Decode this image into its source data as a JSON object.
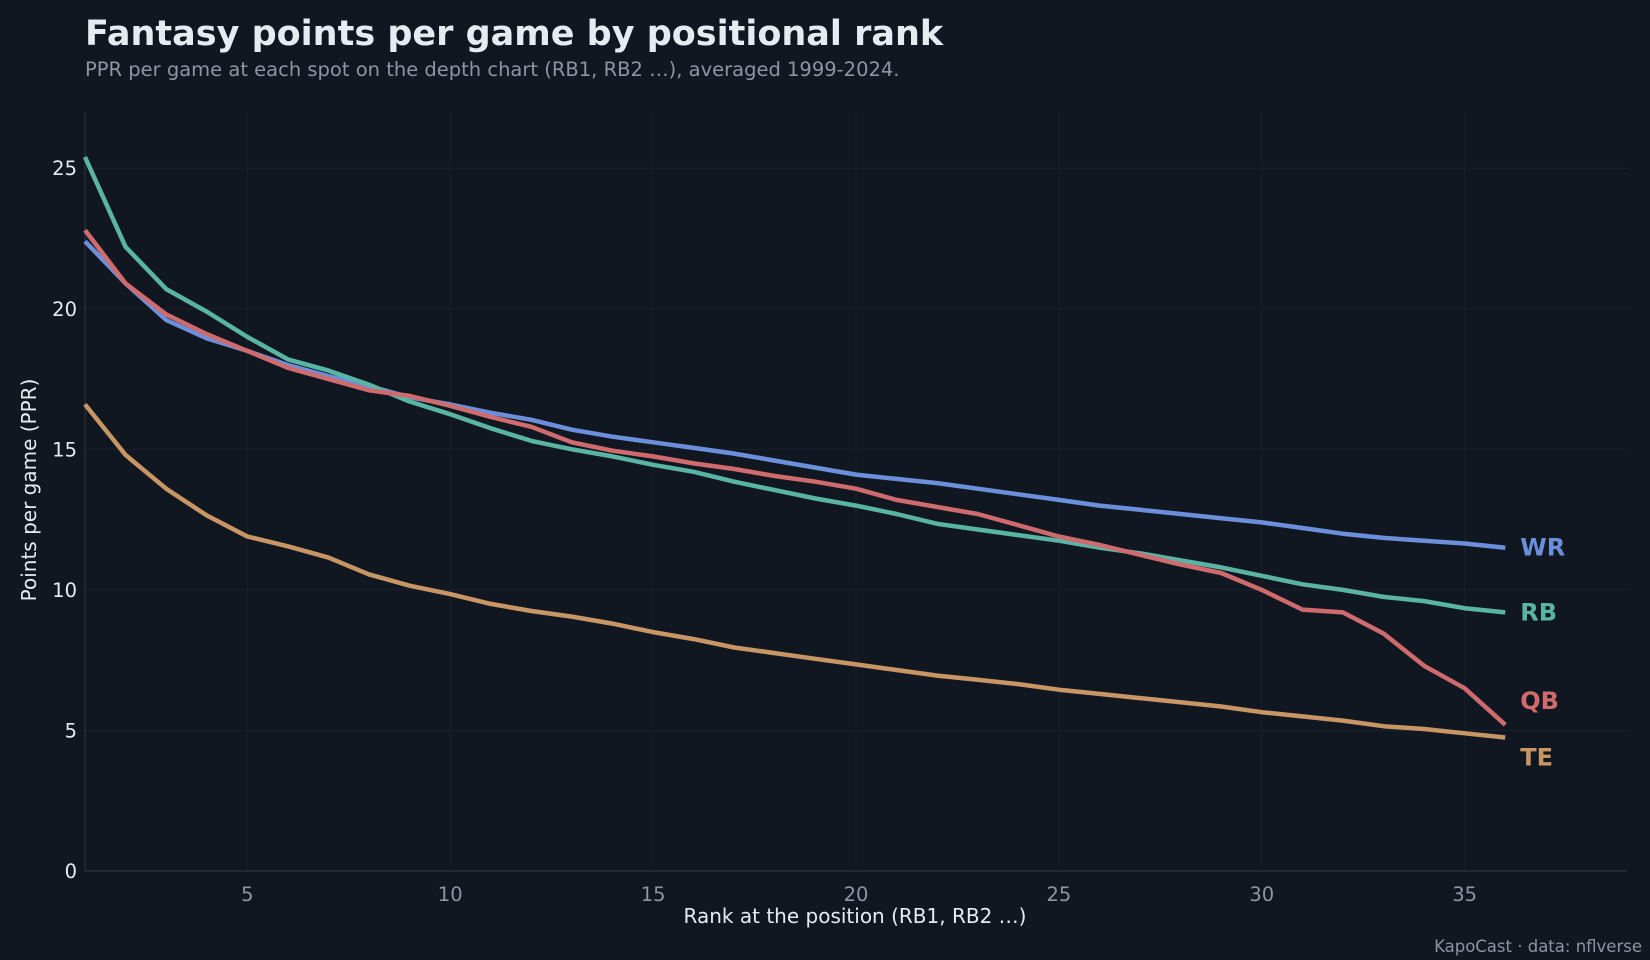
{
  "title": "Fantasy points per game by positional rank",
  "subtitle": "PPR per game at each spot on the depth chart (RB1, RB2 …), averaged 1999-2024.",
  "credit": "KapoCast · data: nflverse",
  "colors": {
    "background": "#111720",
    "grid": "#1a212b",
    "axis": "#2a323d",
    "text": "#e6ebf2",
    "muted": "#8b95a3"
  },
  "chart_data": {
    "type": "line",
    "xlabel": "Rank at the position (RB1, RB2 …)",
    "ylabel": "Points per game (PPR)",
    "xlim": [
      1,
      39
    ],
    "ylim": [
      0,
      27
    ],
    "xticks": [
      5,
      10,
      15,
      20,
      25,
      30,
      35
    ],
    "yticks": [
      0,
      5,
      10,
      15,
      20,
      25
    ],
    "grid": true,
    "legend": "direct labels at line ends",
    "x": [
      1,
      2,
      3,
      4,
      5,
      6,
      7,
      8,
      9,
      10,
      11,
      12,
      13,
      14,
      15,
      16,
      17,
      18,
      19,
      20,
      21,
      22,
      23,
      24,
      25,
      26,
      27,
      28,
      29,
      30,
      31,
      32,
      33,
      34,
      35,
      36
    ],
    "series": [
      {
        "name": "WR",
        "color": "#6b8fdb",
        "values": [
          22.4,
          20.9,
          19.6,
          18.95,
          18.5,
          18.0,
          17.6,
          17.25,
          16.85,
          16.6,
          16.3,
          16.05,
          15.7,
          15.45,
          15.25,
          15.05,
          14.85,
          14.6,
          14.35,
          14.1,
          13.95,
          13.8,
          13.6,
          13.4,
          13.2,
          13.0,
          12.85,
          12.7,
          12.55,
          12.4,
          12.2,
          12.0,
          11.85,
          11.75,
          11.65,
          11.5
        ]
      },
      {
        "name": "RB",
        "color": "#5ab4a4",
        "values": [
          25.4,
          22.2,
          20.7,
          19.9,
          19.0,
          18.2,
          17.8,
          17.3,
          16.7,
          16.25,
          15.75,
          15.3,
          15.0,
          14.75,
          14.45,
          14.2,
          13.85,
          13.55,
          13.25,
          13.0,
          12.7,
          12.35,
          12.15,
          11.95,
          11.75,
          11.5,
          11.3,
          11.05,
          10.8,
          10.5,
          10.2,
          10.0,
          9.75,
          9.6,
          9.35,
          9.2
        ]
      },
      {
        "name": "QB",
        "color": "#d06b6d",
        "values": [
          22.8,
          20.9,
          19.8,
          19.1,
          18.5,
          17.9,
          17.5,
          17.1,
          16.9,
          16.55,
          16.15,
          15.8,
          15.25,
          14.95,
          14.75,
          14.5,
          14.3,
          14.05,
          13.85,
          13.6,
          13.2,
          12.95,
          12.7,
          12.3,
          11.9,
          11.6,
          11.25,
          10.9,
          10.6,
          10.0,
          9.3,
          9.2,
          8.45,
          7.3,
          6.5,
          5.2
        ]
      },
      {
        "name": "TE",
        "color": "#c89565",
        "values": [
          16.6,
          14.8,
          13.6,
          12.65,
          11.9,
          11.55,
          11.15,
          10.55,
          10.15,
          9.85,
          9.5,
          9.25,
          9.05,
          8.8,
          8.5,
          8.25,
          7.95,
          7.75,
          7.55,
          7.35,
          7.15,
          6.95,
          6.8,
          6.65,
          6.45,
          6.3,
          6.15,
          6.0,
          5.85,
          5.65,
          5.5,
          5.35,
          5.15,
          5.05,
          4.9,
          4.75
        ]
      }
    ]
  }
}
